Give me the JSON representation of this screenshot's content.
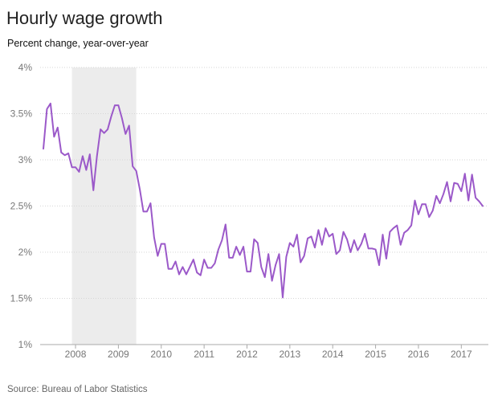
{
  "title": "Hourly wage growth",
  "subtitle": "Percent change, year-over-year",
  "source": "Source: Bureau of Labor Statistics",
  "chart_data": {
    "type": "line",
    "title": "Hourly wage growth",
    "subtitle": "Percent change, year-over-year",
    "xlabel": "",
    "ylabel": "",
    "ylim": [
      1,
      4
    ],
    "xlim": [
      2007.25,
      2017.5
    ],
    "y_ticks": [
      {
        "value": 4,
        "label": "4%"
      },
      {
        "value": 3.5,
        "label": "3.5%"
      },
      {
        "value": 3,
        "label": "3%"
      },
      {
        "value": 2.5,
        "label": "2.5%"
      },
      {
        "value": 2,
        "label": "2%"
      },
      {
        "value": 1.5,
        "label": "1.5%"
      },
      {
        "value": 1,
        "label": "1%"
      }
    ],
    "x_ticks": [
      {
        "value": 2008,
        "label": "2008"
      },
      {
        "value": 2009,
        "label": "2009"
      },
      {
        "value": 2010,
        "label": "2010"
      },
      {
        "value": 2011,
        "label": "2011"
      },
      {
        "value": 2012,
        "label": "2012"
      },
      {
        "value": 2013,
        "label": "2013"
      },
      {
        "value": 2014,
        "label": "2014"
      },
      {
        "value": 2015,
        "label": "2015"
      },
      {
        "value": 2016,
        "label": "2016"
      },
      {
        "value": 2017,
        "label": "2017"
      }
    ],
    "recession_band": {
      "start": 2007.917,
      "end": 2009.417
    },
    "line_color": "#9b59c9",
    "band_color": "#ececec",
    "grid": "horizontal",
    "series": [
      {
        "values": [
          3.12,
          3.55,
          3.61,
          3.25,
          3.35,
          3.08,
          3.05,
          3.07,
          2.92,
          2.92,
          2.87,
          3.04,
          2.89,
          3.06,
          2.67,
          3.04,
          3.33,
          3.29,
          3.33,
          3.47,
          3.59,
          3.59,
          3.45,
          3.28,
          3.37,
          2.93,
          2.88,
          2.68,
          2.44,
          2.44,
          2.53,
          2.16,
          1.96,
          2.09,
          2.09,
          1.82,
          1.82,
          1.9,
          1.76,
          1.84,
          1.76,
          1.84,
          1.92,
          1.78,
          1.75,
          1.92,
          1.83,
          1.83,
          1.88,
          2.03,
          2.13,
          2.3,
          1.94,
          1.94,
          2.06,
          1.97,
          2.06,
          1.79,
          1.79,
          2.14,
          2.1,
          1.84,
          1.73,
          1.98,
          1.69,
          1.86,
          1.98,
          1.51,
          1.95,
          2.1,
          2.06,
          2.19,
          1.89,
          1.96,
          2.15,
          2.17,
          2.05,
          2.24,
          2.08,
          2.26,
          2.17,
          2.2,
          1.98,
          2.02,
          2.22,
          2.14,
          2.0,
          2.13,
          2.02,
          2.09,
          2.2,
          2.04,
          2.04,
          2.03,
          1.86,
          2.19,
          1.93,
          2.22,
          2.26,
          2.29,
          2.08,
          2.21,
          2.24,
          2.29,
          2.56,
          2.41,
          2.52,
          2.52,
          2.38,
          2.45,
          2.61,
          2.53,
          2.63,
          2.76,
          2.55,
          2.75,
          2.74,
          2.66,
          2.85,
          2.56,
          2.84,
          2.59,
          2.55,
          2.5
        ]
      }
    ],
    "x_start": 2007.25,
    "x_step": 0.0833333
  }
}
